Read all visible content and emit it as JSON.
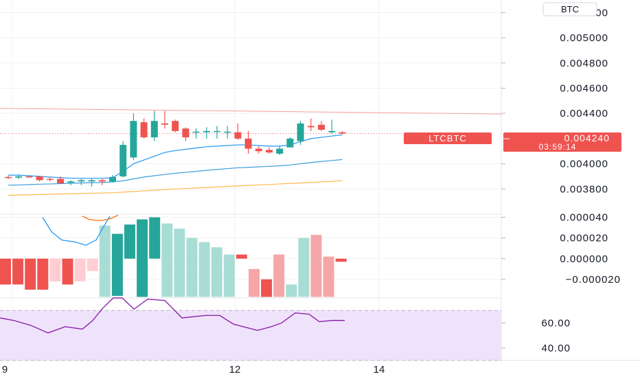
{
  "header": {
    "currency_badge": "BTC"
  },
  "chart_data": [
    {
      "type": "candlestick",
      "panel": "price",
      "symbol_label": "LTCBTC",
      "last_price": "0.004240",
      "countdown": "03:59:14",
      "y_ticks": [
        "0.005200",
        "0.005000",
        "0.004800",
        "0.004600",
        "0.004400",
        "0.004000",
        "0.003800"
      ],
      "ylim": [
        0.0036,
        0.0053
      ],
      "grid": true,
      "x_ticks": [
        "9",
        "12",
        "14"
      ],
      "candles": [
        {
          "o": 0.003895,
          "h": 0.003905,
          "l": 0.00388,
          "c": 0.00389
        },
        {
          "o": 0.00389,
          "h": 0.00391,
          "l": 0.00388,
          "c": 0.0039
        },
        {
          "o": 0.0039,
          "h": 0.00391,
          "l": 0.00389,
          "c": 0.003895
        },
        {
          "o": 0.0039,
          "h": 0.003905,
          "l": 0.00386,
          "c": 0.00387
        },
        {
          "o": 0.00388,
          "h": 0.003895,
          "l": 0.00386,
          "c": 0.003875
        },
        {
          "o": 0.00388,
          "h": 0.0039,
          "l": 0.00384,
          "c": 0.003845
        },
        {
          "o": 0.00385,
          "h": 0.00387,
          "l": 0.00383,
          "c": 0.00386
        },
        {
          "o": 0.00386,
          "h": 0.00388,
          "l": 0.00383,
          "c": 0.00387
        },
        {
          "o": 0.00386,
          "h": 0.003885,
          "l": 0.00382,
          "c": 0.00387
        },
        {
          "o": 0.00387,
          "h": 0.00388,
          "l": 0.00383,
          "c": 0.00386
        },
        {
          "o": 0.00386,
          "h": 0.00391,
          "l": 0.00385,
          "c": 0.003895
        },
        {
          "o": 0.0039,
          "h": 0.00418,
          "l": 0.00389,
          "c": 0.00415
        },
        {
          "o": 0.00405,
          "h": 0.0044,
          "l": 0.00403,
          "c": 0.00434
        },
        {
          "o": 0.00433,
          "h": 0.00436,
          "l": 0.0042,
          "c": 0.00421
        },
        {
          "o": 0.00421,
          "h": 0.00442,
          "l": 0.00418,
          "c": 0.00434
        },
        {
          "o": 0.00432,
          "h": 0.00442,
          "l": 0.00428,
          "c": 0.00431
        },
        {
          "o": 0.00434,
          "h": 0.00435,
          "l": 0.00425,
          "c": 0.00426
        },
        {
          "o": 0.00428,
          "h": 0.00429,
          "l": 0.00418,
          "c": 0.00421
        },
        {
          "o": 0.00425,
          "h": 0.00428,
          "l": 0.0042,
          "c": 0.004255
        },
        {
          "o": 0.00425,
          "h": 0.00429,
          "l": 0.0042,
          "c": 0.00426
        },
        {
          "o": 0.004255,
          "h": 0.0043,
          "l": 0.0042,
          "c": 0.00426
        },
        {
          "o": 0.004255,
          "h": 0.0043,
          "l": 0.0042,
          "c": 0.004255
        },
        {
          "o": 0.00425,
          "h": 0.00432,
          "l": 0.00419,
          "c": 0.0042
        },
        {
          "o": 0.0042,
          "h": 0.00426,
          "l": 0.00408,
          "c": 0.00412
        },
        {
          "o": 0.00412,
          "h": 0.00414,
          "l": 0.00408,
          "c": 0.0041
        },
        {
          "o": 0.00411,
          "h": 0.00413,
          "l": 0.00408,
          "c": 0.00409
        },
        {
          "o": 0.00408,
          "h": 0.00414,
          "l": 0.00407,
          "c": 0.00412
        },
        {
          "o": 0.00413,
          "h": 0.00421,
          "l": 0.00413,
          "c": 0.0042
        },
        {
          "o": 0.00418,
          "h": 0.00434,
          "l": 0.00415,
          "c": 0.00432
        },
        {
          "o": 0.0043,
          "h": 0.00436,
          "l": 0.00426,
          "c": 0.00429
        },
        {
          "o": 0.00431,
          "h": 0.00434,
          "l": 0.00426,
          "c": 0.00427
        },
        {
          "o": 0.00425,
          "h": 0.00435,
          "l": 0.00424,
          "c": 0.00426
        },
        {
          "o": 0.00425,
          "h": 0.00426,
          "l": 0.004235,
          "c": 0.00424
        }
      ],
      "overlays": [
        {
          "name": "",
          "color": "#2196F3",
          "values": [
            0.00391,
            0.00391,
            0.003905,
            0.0039,
            0.003895,
            0.00389,
            0.003885,
            0.003885,
            0.003885,
            0.003885,
            0.00389,
            0.00394,
            0.004,
            0.00403,
            0.00406,
            0.00409,
            0.004105,
            0.004115,
            0.004125,
            0.004135,
            0.00414,
            0.004145,
            0.00415,
            0.00415,
            0.004145,
            0.00414,
            0.00414,
            0.00415,
            0.004175,
            0.0042,
            0.00421,
            0.00422,
            0.00423
          ]
        },
        {
          "name": "",
          "color": "#3b9fdc",
          "values": [
            0.00383,
            0.003832,
            0.003835,
            0.003838,
            0.00384,
            0.003842,
            0.003845,
            0.003848,
            0.00385,
            0.003852,
            0.003856,
            0.003865,
            0.00388,
            0.003895,
            0.003905,
            0.003915,
            0.003925,
            0.003932,
            0.00394,
            0.003948,
            0.003955,
            0.003962,
            0.003968,
            0.003972,
            0.003976,
            0.00398,
            0.003984,
            0.00399,
            0.004,
            0.00401,
            0.004018,
            0.004026,
            0.004034
          ]
        },
        {
          "name": "",
          "color": "#FFB74D",
          "values": [
            0.00375,
            0.003752,
            0.003754,
            0.003756,
            0.003758,
            0.00376,
            0.003762,
            0.003764,
            0.003766,
            0.003768,
            0.00377,
            0.003775,
            0.00378,
            0.003785,
            0.00379,
            0.003795,
            0.0038,
            0.003804,
            0.003808,
            0.003812,
            0.003816,
            0.00382,
            0.003824,
            0.003828,
            0.003832,
            0.003836,
            0.00384,
            0.003844,
            0.003848,
            0.003852,
            0.003856,
            0.00386,
            0.003866
          ]
        }
      ],
      "trendline": {
        "color": "#f4a09a",
        "start": 0.00444,
        "end": 0.004395
      },
      "last_price_line": 0.00424
    },
    {
      "type": "histogram",
      "panel": "macd",
      "y_ticks": [
        "0.000040",
        "0.000020",
        "0.000000",
        "−0.000020"
      ],
      "ylim": [
        -3.8e-05,
        4.3e-05
      ],
      "grid": true,
      "bars": [
        {
          "top": -2.5e-05,
          "bottom": 0,
          "color": "#ef5350"
        },
        {
          "top": -2.5e-05,
          "bottom": 0,
          "color": "#ef5350"
        },
        {
          "top": -3e-05,
          "bottom": 0,
          "color": "#ef5350"
        },
        {
          "top": -3e-05,
          "bottom": 0,
          "color": "#ef5350"
        },
        {
          "top": -2.2e-05,
          "bottom": 0,
          "color": "#ffcdd2"
        },
        {
          "top": -2.5e-05,
          "bottom": 0,
          "color": "#ef5350"
        },
        {
          "top": -2.2e-05,
          "bottom": 0,
          "color": "#ffcdd2"
        },
        {
          "top": -1.2e-05,
          "bottom": 0,
          "color": "#ffcdd2"
        },
        {
          "top": 3.2e-05,
          "bottom": -3.7e-05,
          "color": "#a8ddd5"
        },
        {
          "top": 2.4e-05,
          "bottom": -3.6e-05,
          "color": "#26a69a"
        },
        {
          "top": 3.3e-05,
          "bottom": 0,
          "color": "#26a69a"
        },
        {
          "top": 3.8e-05,
          "bottom": -3.7e-05,
          "color": "#26a69a"
        },
        {
          "top": 4e-05,
          "bottom": 0,
          "color": "#26a69a"
        },
        {
          "top": 3.4e-05,
          "bottom": -3.7e-05,
          "color": "#a8ddd5"
        },
        {
          "top": 2.9e-05,
          "bottom": -3.7e-05,
          "color": "#a8ddd5"
        },
        {
          "top": 2e-05,
          "bottom": -3.7e-05,
          "color": "#a8ddd5"
        },
        {
          "top": 1.6e-05,
          "bottom": -3.7e-05,
          "color": "#a8ddd5"
        },
        {
          "top": 1.1e-05,
          "bottom": -3.7e-05,
          "color": "#a8ddd5"
        },
        {
          "top": 4e-06,
          "bottom": -3.7e-05,
          "color": "#a8ddd5"
        },
        {
          "top": 4e-06,
          "bottom": 0,
          "color": "#ef5350"
        },
        {
          "top": -1e-05,
          "bottom": -3.7e-05,
          "color": "#f5a7a7"
        },
        {
          "top": -2e-05,
          "bottom": -3.7e-05,
          "color": "#ef5350"
        },
        {
          "top": 4e-06,
          "bottom": -3.7e-05,
          "color": "#f5a7a7"
        },
        {
          "top": -2.5e-05,
          "bottom": -3.7e-05,
          "color": "#a8ddd5"
        },
        {
          "top": 2e-05,
          "bottom": -3.7e-05,
          "color": "#a8ddd5"
        },
        {
          "top": 2.3e-05,
          "bottom": -3.7e-05,
          "color": "#f5a7a7"
        },
        {
          "top": 2e-06,
          "bottom": -3.7e-05,
          "color": "#f5a7a7"
        },
        {
          "top": -3e-06,
          "bottom": 0,
          "color": "#ef5350"
        }
      ],
      "lines": [
        {
          "color": "#2196F3",
          "points": [
            [
              62,
              4e-05
            ],
            [
              75,
              2.6e-05
            ],
            [
              90,
              1.8e-05
            ],
            [
              110,
              1.6e-05
            ],
            [
              125,
              1.3e-05
            ],
            [
              140,
              1.8e-05
            ],
            [
              150,
              3e-05
            ],
            [
              160,
              4.1e-05
            ]
          ]
        },
        {
          "color": "#FF6D00",
          "points": [
            [
              120,
              4.1e-05
            ],
            [
              130,
              3.8e-05
            ],
            [
              140,
              3.7e-05
            ],
            [
              150,
              3.7e-05
            ],
            [
              162,
              3.9e-05
            ],
            [
              172,
              4.2e-05
            ]
          ]
        }
      ]
    },
    {
      "type": "line",
      "panel": "rsi",
      "y_ticks": [
        "60.00",
        "40.00"
      ],
      "ylim": [
        30,
        80
      ],
      "band": [
        30,
        70
      ],
      "band_color": "#efe3fb",
      "line_color": "#8e24aa",
      "values": [
        [
          0,
          64
        ],
        [
          20,
          62
        ],
        [
          45,
          58
        ],
        [
          70,
          52
        ],
        [
          95,
          57
        ],
        [
          120,
          55
        ],
        [
          135,
          62
        ],
        [
          150,
          72
        ],
        [
          165,
          82
        ],
        [
          178,
          88
        ],
        [
          195,
          71
        ],
        [
          215,
          79
        ],
        [
          240,
          78
        ],
        [
          265,
          64
        ],
        [
          300,
          66
        ],
        [
          320,
          66
        ],
        [
          340,
          59
        ],
        [
          375,
          54
        ],
        [
          395,
          57
        ],
        [
          410,
          60
        ],
        [
          430,
          68
        ],
        [
          450,
          67
        ],
        [
          465,
          61
        ],
        [
          485,
          62
        ],
        [
          502,
          62
        ]
      ]
    }
  ]
}
